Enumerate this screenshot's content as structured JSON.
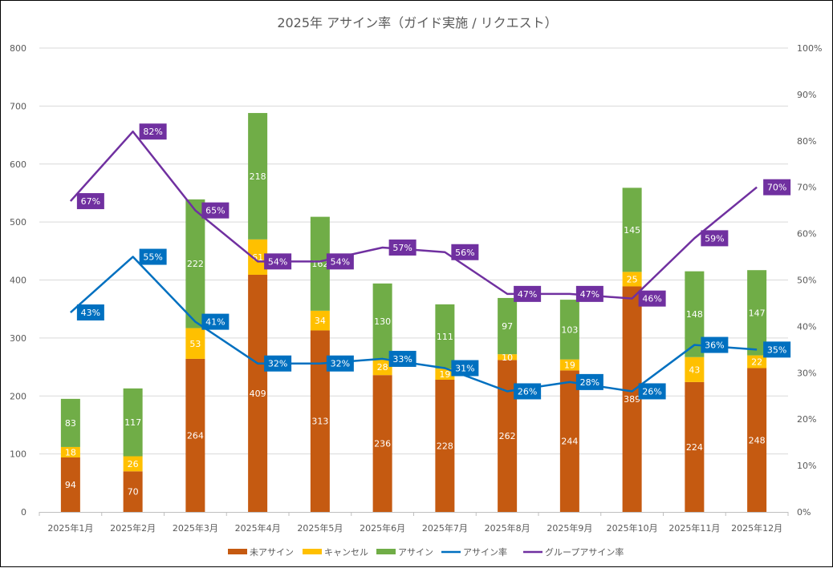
{
  "chart_data": {
    "type": "bar",
    "subtype": "stacked-bar-with-lines",
    "title": "2025年 アサイン率（ガイド実施 / リクエスト）",
    "xlabel": "",
    "ylabel": "",
    "y2label": "",
    "categories": [
      "2025年1月",
      "2025年2月",
      "2025年3月",
      "2025年4月",
      "2025年5月",
      "2025年6月",
      "2025年7月",
      "2025年8月",
      "2025年9月",
      "2025年10月",
      "2025年11月",
      "2025年12月"
    ],
    "ylim": [
      0,
      800
    ],
    "yticks": [
      0,
      100,
      200,
      300,
      400,
      500,
      600,
      700,
      800
    ],
    "y2lim": [
      0,
      100
    ],
    "y2ticks": [
      "0%",
      "10%",
      "20%",
      "30%",
      "40%",
      "50%",
      "60%",
      "70%",
      "80%",
      "90%",
      "100%"
    ],
    "grid": true,
    "legend_position": "bottom",
    "series": [
      {
        "name": "未アサイン",
        "kind": "bar",
        "axis": "left",
        "color": "#C55A11",
        "values": [
          94,
          70,
          264,
          409,
          313,
          236,
          228,
          262,
          244,
          389,
          224,
          248
        ]
      },
      {
        "name": "キャンセル",
        "kind": "bar",
        "axis": "left",
        "color": "#FFC000",
        "values": [
          18,
          26,
          53,
          61,
          34,
          28,
          19,
          10,
          19,
          25,
          43,
          22
        ]
      },
      {
        "name": "アサイン",
        "kind": "bar",
        "axis": "left",
        "color": "#70AD47",
        "values": [
          83,
          117,
          222,
          218,
          162,
          130,
          111,
          97,
          103,
          145,
          148,
          147
        ]
      },
      {
        "name": "アサイン率",
        "kind": "line",
        "axis": "right",
        "color": "#0070C0",
        "values": [
          43,
          55,
          41,
          32,
          32,
          33,
          31,
          26,
          28,
          26,
          36,
          35
        ]
      },
      {
        "name": "グループアサイン率",
        "kind": "line",
        "axis": "right",
        "color": "#7030A0",
        "values": [
          67,
          82,
          65,
          54,
          54,
          57,
          56,
          47,
          47,
          46,
          59,
          70
        ]
      }
    ]
  }
}
